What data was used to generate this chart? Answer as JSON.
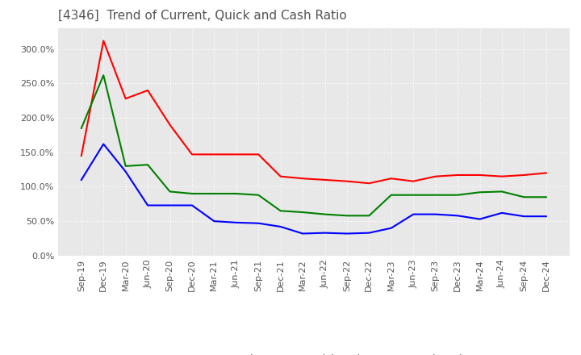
{
  "title": "[4346]  Trend of Current, Quick and Cash Ratio",
  "title_fontsize": 11,
  "title_color": "#555555",
  "background_color": "#ffffff",
  "plot_background": "#e8e8e8",
  "grid_color": "#ffffff",
  "ylim": [
    0.0,
    3.3
  ],
  "ytick_labels": [
    "0.0%",
    "50.0%",
    "100.0%",
    "150.0%",
    "200.0%",
    "250.0%",
    "300.0%"
  ],
  "ytick_values": [
    0.0,
    0.5,
    1.0,
    1.5,
    2.0,
    2.5,
    3.0
  ],
  "x_labels": [
    "Sep-19",
    "Dec-19",
    "Mar-20",
    "Jun-20",
    "Sep-20",
    "Dec-20",
    "Mar-21",
    "Jun-21",
    "Sep-21",
    "Dec-21",
    "Mar-22",
    "Jun-22",
    "Sep-22",
    "Dec-22",
    "Mar-23",
    "Jun-23",
    "Sep-23",
    "Dec-23",
    "Mar-24",
    "Jun-24",
    "Sep-24",
    "Dec-24"
  ],
  "current_ratio": [
    1.45,
    3.12,
    2.28,
    2.4,
    1.9,
    1.47,
    1.47,
    1.47,
    1.47,
    1.15,
    1.12,
    1.1,
    1.08,
    1.05,
    1.12,
    1.08,
    1.15,
    1.17,
    1.17,
    1.15,
    1.17,
    1.2
  ],
  "quick_ratio": [
    1.85,
    2.62,
    1.3,
    1.32,
    0.93,
    0.9,
    0.9,
    0.9,
    0.88,
    0.65,
    0.63,
    0.6,
    0.58,
    0.58,
    0.88,
    0.88,
    0.88,
    0.88,
    0.92,
    0.93,
    0.85,
    0.85
  ],
  "cash_ratio": [
    1.1,
    1.62,
    1.22,
    0.73,
    0.73,
    0.73,
    0.5,
    0.48,
    0.47,
    0.42,
    0.32,
    0.33,
    0.32,
    0.33,
    0.4,
    0.6,
    0.6,
    0.58,
    0.53,
    0.62,
    0.57,
    0.57
  ],
  "current_color": "#ff0000",
  "quick_color": "#008000",
  "cash_color": "#0000ff",
  "line_width": 1.5,
  "legend_labels": [
    "Current Ratio",
    "Quick Ratio",
    "Cash Ratio"
  ],
  "legend_fontsize": 9,
  "tick_fontsize": 8,
  "tick_color": "#555555"
}
